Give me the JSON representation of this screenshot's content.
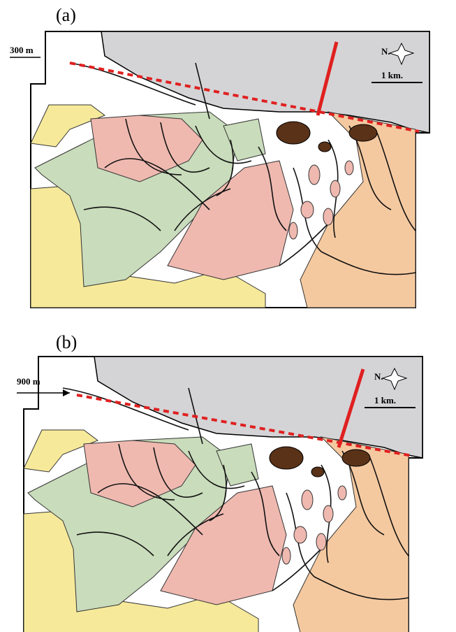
{
  "panels": [
    {
      "label": "(a)",
      "offset": "300 m",
      "north": "N.",
      "scale": "1 km."
    },
    {
      "label": "(b)",
      "offset": "900 m",
      "north": "N.",
      "scale": "1 km."
    }
  ]
}
